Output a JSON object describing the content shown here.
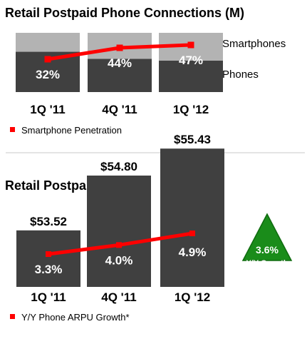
{
  "colors": {
    "phones": "#404040",
    "smartphones": "#b3b3b3",
    "bar_dark": "#404040",
    "line": "#ff0000",
    "divider": "#c8c8c8",
    "badge_fill": "#1a8c1a",
    "badge_stroke": "#0f6b0f"
  },
  "chart_data": [
    {
      "type": "bar",
      "stacked": true,
      "title": "Retail Postpaid Phone Connections (M)",
      "categories": [
        "1Q '11",
        "4Q '11",
        "1Q '12"
      ],
      "series": [
        {
          "name": "Phones",
          "values": [
            68,
            56,
            53
          ]
        },
        {
          "name": "Smartphones",
          "values": [
            32,
            44,
            47
          ]
        }
      ],
      "line_series": {
        "name": "Smartphone Penetration",
        "values": [
          32,
          44,
          47
        ],
        "labels": [
          "32%",
          "44%",
          "47%"
        ]
      },
      "legend": "bottom-left",
      "grid": false
    },
    {
      "type": "bar",
      "title": "Retail Postpaid ARPU",
      "categories": [
        "1Q '11",
        "4Q '11",
        "1Q '12"
      ],
      "values": [
        53.52,
        54.8,
        55.43
      ],
      "value_labels": [
        "$53.52",
        "$54.80",
        "$55.43"
      ],
      "line_series": {
        "name": "Y/Y Phone ARPU Growth*",
        "values": [
          3.3,
          4.0,
          4.9
        ],
        "labels": [
          "3.3%",
          "4.0%",
          "4.9%"
        ]
      },
      "legend": "bottom-left",
      "grid": false,
      "callout": {
        "value": "3.6%",
        "label": "Y/Y Growth",
        "icon": "up-triangle-icon"
      }
    }
  ]
}
